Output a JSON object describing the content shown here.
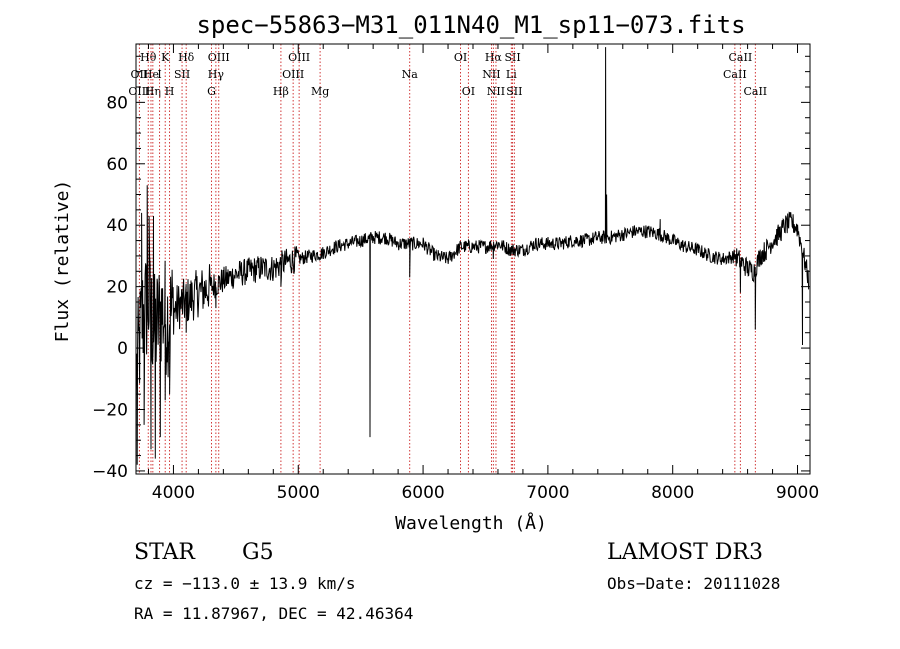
{
  "chart_data": {
    "type": "line",
    "title": "spec−55863−M31_011N40_M1_sp11−073.fits",
    "xlabel": "Wavelength (Å)",
    "ylabel": "Flux (relative)",
    "xlim": [
      3700,
      9100
    ],
    "ylim": [
      -41,
      99
    ],
    "xticks": [
      4000,
      5000,
      6000,
      7000,
      8000,
      9000
    ],
    "yticks": [
      -40,
      -20,
      0,
      20,
      40,
      60,
      80
    ],
    "xtick_labels": [
      "4000",
      "5000",
      "6000",
      "7000",
      "8000",
      "9000"
    ],
    "ytick_labels": [
      "−40",
      "−20",
      "0",
      "20",
      "40",
      "60",
      "80"
    ],
    "lines": [
      {
        "label": "Hθ",
        "wavelength": 3798,
        "row": 0
      },
      {
        "label": "OII",
        "wavelength": 3727,
        "row": 1
      },
      {
        "label": "OIII",
        "wavelength": 3727,
        "row": 2
      },
      {
        "label": "He",
        "wavelength": 3820,
        "row": 1
      },
      {
        "label": "Hη",
        "wavelength": 3835,
        "row": 2
      },
      {
        "label": "K",
        "wavelength": 3934,
        "row": 0
      },
      {
        "label": "H",
        "wavelength": 3969,
        "row": 2
      },
      {
        "label": "I",
        "wavelength": 3889,
        "row": 1
      },
      {
        "label": "SII",
        "wavelength": 4069,
        "row": 1
      },
      {
        "label": "Hδ",
        "wavelength": 4102,
        "row": 0
      },
      {
        "label": "OIII",
        "wavelength": 4363,
        "row": 0
      },
      {
        "label": "Hγ",
        "wavelength": 4340,
        "row": 1
      },
      {
        "label": "G",
        "wavelength": 4305,
        "row": 2
      },
      {
        "label": "Hβ",
        "wavelength": 4861,
        "row": 2
      },
      {
        "label": "OIII",
        "wavelength": 4959,
        "row": 1
      },
      {
        "label": "OIII",
        "wavelength": 5007,
        "row": 0
      },
      {
        "label": "Mg",
        "wavelength": 5175,
        "row": 2
      },
      {
        "label": "Na",
        "wavelength": 5893,
        "row": 1
      },
      {
        "label": "OI",
        "wavelength": 6300,
        "row": 0
      },
      {
        "label": "OI",
        "wavelength": 6363,
        "row": 2
      },
      {
        "label": "Hα",
        "wavelength": 6563,
        "row": 0
      },
      {
        "label": "NII",
        "wavelength": 6548,
        "row": 1
      },
      {
        "label": "NII",
        "wavelength": 6584,
        "row": 2
      },
      {
        "label": "SII",
        "wavelength": 6717,
        "row": 0
      },
      {
        "label": "Li",
        "wavelength": 6707,
        "row": 1
      },
      {
        "label": "SII",
        "wavelength": 6731,
        "row": 2
      },
      {
        "label": "CaII",
        "wavelength": 8542,
        "row": 0
      },
      {
        "label": "CaII",
        "wavelength": 8498,
        "row": 1
      },
      {
        "label": "CaII",
        "wavelength": 8662,
        "row": 2
      }
    ],
    "spectrum_anchors": {
      "x": [
        3700,
        3750,
        3800,
        3850,
        3900,
        3950,
        4000,
        4050,
        4100,
        4200,
        4300,
        4400,
        4500,
        4600,
        4700,
        4800,
        4900,
        5000,
        5100,
        5200,
        5300,
        5400,
        5500,
        5600,
        5700,
        5800,
        5900,
        6000,
        6100,
        6200,
        6300,
        6400,
        6500,
        6600,
        6700,
        6800,
        6900,
        7000,
        7100,
        7200,
        7300,
        7400,
        7500,
        7600,
        7700,
        7800,
        7900,
        8000,
        8100,
        8200,
        8300,
        8400,
        8500,
        8550,
        8600,
        8650,
        8700,
        8750,
        8800,
        8850,
        8900,
        8950,
        9000,
        9050,
        9100
      ],
      "y": [
        -10,
        10,
        15,
        5,
        12,
        10,
        12,
        14,
        15,
        18,
        20,
        22,
        24,
        25,
        26,
        26,
        28,
        29,
        30,
        31,
        33,
        34,
        35,
        36,
        36,
        34,
        34,
        34,
        30,
        29,
        33,
        33,
        33,
        34,
        32,
        32,
        34,
        34,
        34,
        35,
        35,
        36,
        36,
        37,
        38,
        38,
        37,
        35,
        33,
        32,
        30,
        29,
        30,
        28,
        26,
        25,
        30,
        32,
        35,
        37,
        40,
        41,
        39,
        30,
        20
      ]
    },
    "spectrum_features": [
      {
        "x": 3710,
        "y": -38
      },
      {
        "x": 3745,
        "y": 44
      },
      {
        "x": 3765,
        "y": -25
      },
      {
        "x": 3790,
        "y": 53
      },
      {
        "x": 3805,
        "y": 43
      },
      {
        "x": 3820,
        "y": -33
      },
      {
        "x": 3840,
        "y": 43
      },
      {
        "x": 3855,
        "y": -36
      },
      {
        "x": 3895,
        "y": -29
      },
      {
        "x": 3934,
        "y": -17
      },
      {
        "x": 3969,
        "y": -15
      },
      {
        "x": 4102,
        "y": 5
      },
      {
        "x": 4340,
        "y": 13
      },
      {
        "x": 4861,
        "y": 20
      },
      {
        "x": 5575,
        "y": -29
      },
      {
        "x": 5893,
        "y": 23
      },
      {
        "x": 6563,
        "y": 29
      },
      {
        "x": 7462,
        "y": 98
      },
      {
        "x": 7470,
        "y": 50
      },
      {
        "x": 7900,
        "y": 42
      },
      {
        "x": 8542,
        "y": 18
      },
      {
        "x": 8662,
        "y": 6
      },
      {
        "x": 9040,
        "y": 1
      }
    ]
  },
  "info": {
    "object_type": "STAR",
    "subclass": "G5",
    "survey": "LAMOST DR3",
    "cz": "cz = −113.0 ± 13.9 km/s",
    "obs_date": "Obs−Date: 20111028",
    "coords": "RA =  11.87967, DEC =  42.46364"
  }
}
